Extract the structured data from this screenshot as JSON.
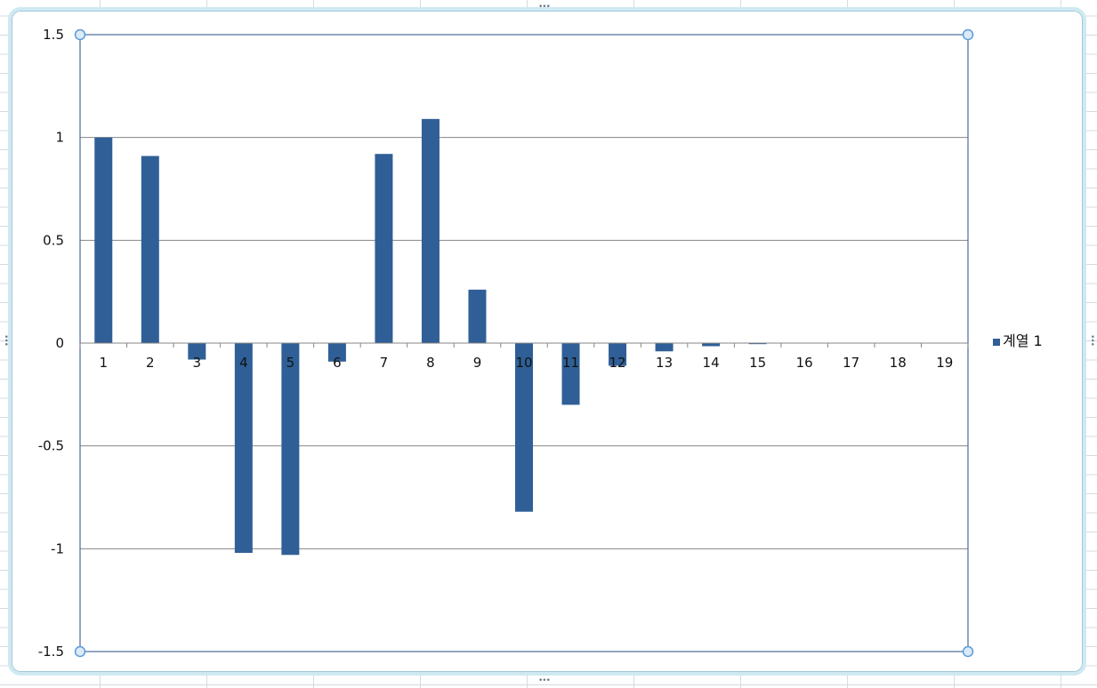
{
  "chart_data": {
    "type": "bar",
    "categories": [
      "1",
      "2",
      "3",
      "4",
      "5",
      "6",
      "7",
      "8",
      "9",
      "10",
      "11",
      "12",
      "13",
      "14",
      "15",
      "16",
      "17",
      "18",
      "19"
    ],
    "series": [
      {
        "name": "계열 1",
        "values": [
          1.0,
          0.91,
          -0.08,
          -1.02,
          -1.03,
          -0.09,
          0.92,
          1.09,
          0.26,
          -0.82,
          -0.3,
          -0.11,
          -0.04,
          -0.015,
          -0.005,
          0,
          0,
          0,
          0
        ]
      }
    ],
    "ylim": [
      -1.5,
      1.5
    ],
    "yticks": [
      1.5,
      1,
      0.5,
      0,
      -0.5,
      -1,
      -1.5
    ],
    "ytick_labels": [
      "1.5",
      "1",
      "0.5",
      "0",
      "-0.5",
      "-1",
      "-1.5"
    ],
    "grid": true,
    "legend_position": "right",
    "bar_color": "#2f5f96",
    "grid_color": "#868686",
    "axis_color": "#4a6a9a",
    "handle_color": "#5b9bd5"
  }
}
